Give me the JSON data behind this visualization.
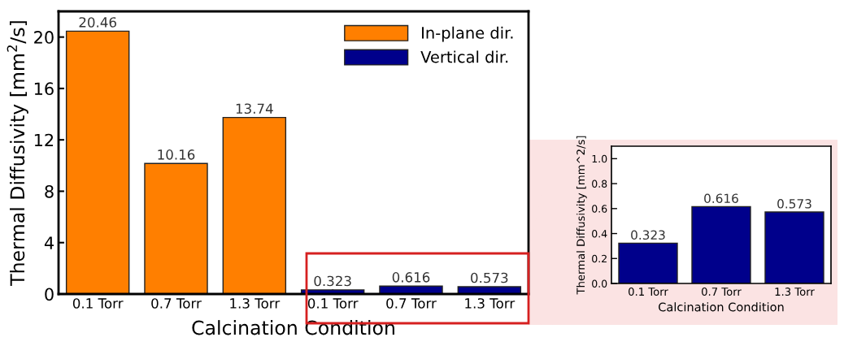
{
  "chart_data": [
    {
      "type": "bar",
      "categories": [
        "0.1 Torr",
        "0.7 Torr",
        "1.3 Torr",
        "0.1 Torr",
        "0.7 Torr",
        "1.3 Torr"
      ],
      "xlabel": "Calcination Condition",
      "ylabel": "Thermal Diffusivity [mm$^{2}$/s]",
      "series": [
        {
          "name": "In-plane dir.",
          "color": "#ff7f00",
          "values": [
            20.46,
            10.16,
            13.74,
            null,
            null,
            null
          ]
        },
        {
          "name": "Vertical dir.",
          "color": "#00008b",
          "values": [
            null,
            null,
            null,
            0.323,
            0.616,
            0.573
          ]
        }
      ],
      "ylim": [
        0,
        22
      ],
      "yticks": [
        0,
        4,
        8,
        12,
        16,
        20
      ],
      "data_labels": true,
      "legend": "top right",
      "grid": false
    },
    {
      "type": "bar",
      "categories": [
        "0.1 Torr",
        "0.7 Torr",
        "1.3 Torr"
      ],
      "xlabel": "Calcination Condition",
      "ylabel": "Thermal Diffusivity [mm^2/s]",
      "series": [
        {
          "color": "#00008b",
          "values": [
            0.323,
            0.616,
            0.573
          ]
        }
      ],
      "ylim": [
        0,
        1.1
      ],
      "yticks": [
        "0.0",
        "0.2",
        "0.4",
        "0.6",
        "0.8",
        "1.0"
      ],
      "data_labels": true,
      "grid": false
    }
  ]
}
